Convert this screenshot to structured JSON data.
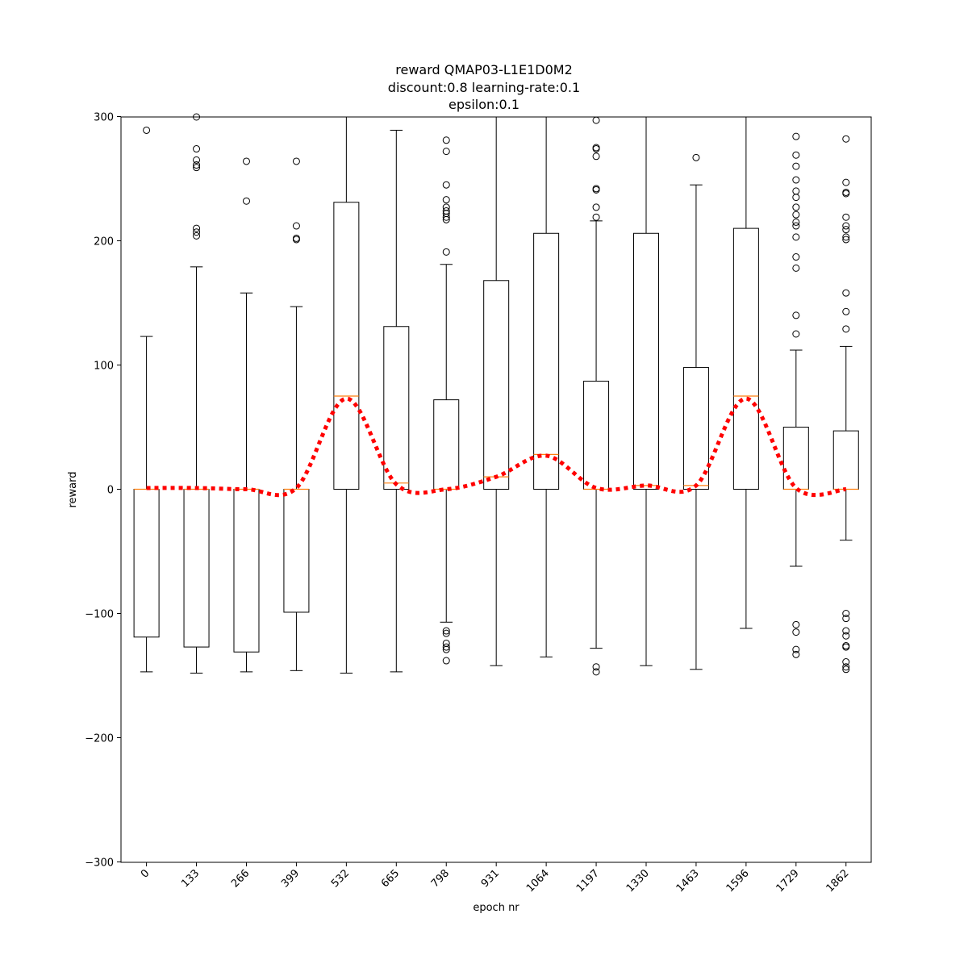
{
  "chart_data": {
    "type": "box",
    "title": [
      "reward QMAP03-L1E1D0M2",
      "discount:0.8 learning-rate:0.1",
      "epsilon:0.1"
    ],
    "xlabel": "epoch nr",
    "ylabel": "reward",
    "ylim": [
      -300,
      300
    ],
    "yticks": [
      -300,
      -200,
      -100,
      0,
      100,
      200,
      300
    ],
    "ytick_labels": [
      "−300",
      "−200",
      "−100",
      "0",
      "100",
      "200",
      "300"
    ],
    "categories": [
      "0",
      "133",
      "266",
      "399",
      "532",
      "665",
      "798",
      "931",
      "1064",
      "1197",
      "1330",
      "1463",
      "1596",
      "1729",
      "1862"
    ],
    "grid": false,
    "colors": {
      "box": "#000000",
      "median": "#ff7f0e",
      "mean_line": "#ff0000"
    },
    "boxes": [
      {
        "whislo": -147,
        "q1": -119,
        "med": 0,
        "q3": 0,
        "whishi": 123,
        "fliers": [
          289
        ]
      },
      {
        "whislo": -148,
        "q1": -127,
        "med": 0,
        "q3": 0,
        "whishi": 179,
        "fliers": [
          300,
          274,
          265,
          261,
          259,
          210,
          207,
          204
        ]
      },
      {
        "whislo": -147,
        "q1": -131,
        "med": 0,
        "q3": 0,
        "whishi": 158,
        "fliers": [
          264,
          232
        ]
      },
      {
        "whislo": -146,
        "q1": -99,
        "med": 0,
        "q3": 0,
        "whishi": 147,
        "fliers": [
          264,
          212,
          202,
          201
        ]
      },
      {
        "whislo": -148,
        "q1": 0,
        "med": 75,
        "q3": 231,
        "whishi": 300,
        "fliers": []
      },
      {
        "whislo": -147,
        "q1": 0,
        "med": 5,
        "q3": 131,
        "whishi": 289,
        "fliers": []
      },
      {
        "whislo": -107,
        "q1": 0,
        "med": 0,
        "q3": 72,
        "whishi": 181,
        "fliers": [
          281,
          272,
          245,
          233,
          227,
          224,
          222,
          219,
          217,
          191,
          -114,
          -116,
          -124,
          -127,
          -129,
          -138
        ]
      },
      {
        "whislo": -142,
        "q1": 0,
        "med": 10,
        "q3": 168,
        "whishi": 300,
        "fliers": []
      },
      {
        "whislo": -135,
        "q1": 0,
        "med": 28,
        "q3": 206,
        "whishi": 300,
        "fliers": []
      },
      {
        "whislo": -128,
        "q1": 0,
        "med": 0,
        "q3": 87,
        "whishi": 216,
        "fliers": [
          297,
          275,
          274,
          268,
          242,
          241,
          227,
          219,
          -143,
          -147
        ]
      },
      {
        "whislo": -142,
        "q1": 0,
        "med": 3,
        "q3": 206,
        "whishi": 300,
        "fliers": []
      },
      {
        "whislo": -145,
        "q1": 0,
        "med": 3,
        "q3": 98,
        "whishi": 245,
        "fliers": [
          267
        ]
      },
      {
        "whislo": -112,
        "q1": 0,
        "med": 75,
        "q3": 210,
        "whishi": 300,
        "fliers": []
      },
      {
        "whislo": -62,
        "q1": 0,
        "med": 0,
        "q3": 50,
        "whishi": 112,
        "fliers": [
          284,
          269,
          260,
          249,
          240,
          235,
          227,
          221,
          215,
          212,
          203,
          187,
          178,
          140,
          125,
          -109,
          -115,
          -129,
          -133
        ]
      },
      {
        "whislo": -41,
        "q1": 0,
        "med": 0,
        "q3": 47,
        "whishi": 115,
        "fliers": [
          282,
          247,
          239,
          238,
          219,
          212,
          209,
          203,
          201,
          158,
          143,
          129,
          -100,
          -104,
          -114,
          -118,
          -126,
          -127,
          -139,
          -143,
          -145
        ]
      }
    ],
    "mean_line": [
      1,
      1,
      0,
      1,
      73,
      4,
      0,
      10,
      27,
      1,
      3,
      3,
      73,
      1,
      0
    ]
  }
}
